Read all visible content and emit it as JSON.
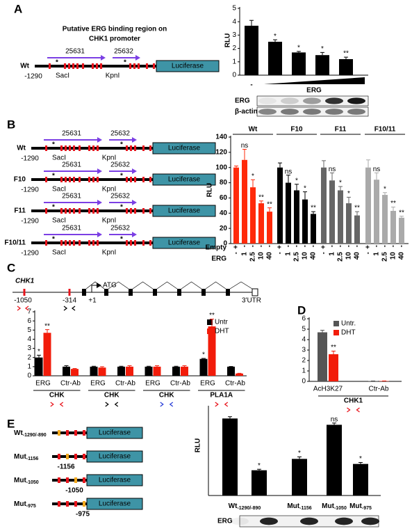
{
  "diagram_a": {
    "label": "A",
    "title": [
      "Putative ERG binding region on",
      "CHK1 promoter"
    ],
    "construct": "Wt",
    "start": "-1290",
    "sites": [
      "SacI",
      "KpnI"
    ],
    "primers": [
      "25631",
      "25632"
    ],
    "star": "*",
    "star_colors": [
      "#000000",
      "#000000"
    ],
    "reporter": "Luciferase"
  },
  "blot_a": {
    "rows": [
      "ERG",
      "β-actin"
    ]
  },
  "diagram_b": {
    "label": "B",
    "start": "-1290",
    "sites": [
      "SacI",
      "KpnI"
    ],
    "primers": [
      "25631",
      "25632"
    ],
    "star": "*",
    "reporter": "Luciferase",
    "constructs": [
      {
        "name": "Wt",
        "star_colors": [
          "#000000",
          "#000000"
        ]
      },
      {
        "name": "F10",
        "star_colors": [
          "#ff2a0a",
          "#000000"
        ]
      },
      {
        "name": "F11",
        "star_colors": [
          "#000000",
          "#ff2a0a"
        ]
      },
      {
        "name": "F10/11",
        "star_colors": [
          "#ff2a0a",
          "#ff2a0a"
        ]
      }
    ]
  },
  "diagram_c": {
    "label": "C",
    "gene": "CHK1",
    "start_codon": "ATG",
    "positions": [
      "-1050",
      "-314",
      "+1"
    ],
    "utr": "3'UTR"
  },
  "diagram_d": {
    "label": "D"
  },
  "diagram_e": {
    "label": "E",
    "reporter": "Luciferase",
    "constructs": [
      {
        "name": "Wt",
        "sub": "-1290/-890",
        "site": null
      },
      {
        "name": "Mut",
        "sub": "-1156",
        "site": "-1156"
      },
      {
        "name": "Mut",
        "sub": "-1050",
        "site": "-1050"
      },
      {
        "name": "Mut",
        "sub": "-975",
        "site": "-975"
      }
    ]
  },
  "blot_e": {
    "rows": [
      "ERG"
    ]
  },
  "chart_data": [
    {
      "type": "bar",
      "ylabel": "RLU",
      "xlabel": "ERG",
      "categories": [
        "-",
        null,
        null,
        null,
        null
      ],
      "series": [
        {
          "color": "#000000",
          "values": [
            3.7,
            2.5,
            1.7,
            1.5,
            1.2
          ],
          "errors": [
            0.4,
            0.15,
            0.08,
            0.2,
            0.15
          ],
          "annotations": [
            null,
            "*",
            "*",
            "*",
            "**"
          ]
        }
      ],
      "ylim": [
        0,
        5
      ],
      "yticks": [
        0,
        1,
        2,
        3,
        4,
        5
      ]
    },
    {
      "type": "bar",
      "ylabel": "RLU",
      "rows": [
        {
          "label": "Empty",
          "values": [
            "+",
            "-",
            "-",
            "-",
            "-"
          ]
        },
        {
          "label": "ERG",
          "values": [
            "-",
            "1",
            "2.5",
            "10",
            "40"
          ]
        }
      ],
      "series": [
        {
          "name": "Wt",
          "color": "#ff2a0a",
          "values": [
            100,
            110,
            74,
            53,
            42
          ],
          "errors": [
            2,
            14,
            10,
            3,
            5
          ],
          "annotations": [
            null,
            "ns",
            "*",
            "**",
            "**"
          ]
        },
        {
          "name": "F10",
          "color": "#000000",
          "values": [
            100,
            80,
            70,
            58,
            39
          ],
          "errors": [
            6,
            10,
            8,
            10,
            3
          ],
          "annotations": [
            null,
            "ns",
            "*",
            "*",
            "**"
          ]
        },
        {
          "name": "F11",
          "color": "#666666",
          "values": [
            100,
            83,
            70,
            53,
            37
          ],
          "errors": [
            9,
            10,
            5,
            8,
            5
          ],
          "annotations": [
            null,
            "ns",
            "*",
            "*",
            "**"
          ]
        },
        {
          "name": "F10/11",
          "color": "#aaaaaa",
          "values": [
            100,
            84,
            64,
            43,
            34
          ],
          "errors": [
            10,
            9,
            3,
            5,
            2
          ],
          "annotations": [
            null,
            "ns",
            "*",
            "**",
            "**"
          ]
        }
      ],
      "ylim": [
        0,
        140
      ],
      "yticks": [
        0,
        20,
        40,
        60,
        80,
        100,
        120,
        140
      ]
    },
    {
      "type": "bar",
      "categories": [
        "ERG",
        "Ctr-Ab",
        "ERG",
        "Ctr-Ab",
        "ERG",
        "Ctr-Ab",
        "ERG",
        "Ctr-Ab"
      ],
      "groups": [
        "CHK",
        "CHK",
        "CHK",
        "PLA1A"
      ],
      "legend": "top-right",
      "series": [
        {
          "name": "Untr",
          "color": "#000000",
          "values": [
            2.0,
            1.0,
            1.0,
            1.0,
            1.0,
            1.0,
            1.85,
            1.0
          ],
          "errors": [
            0.25,
            0.1,
            0.05,
            0.05,
            0.05,
            0.05,
            0.05,
            0.02
          ],
          "annotations": [
            "*",
            null,
            null,
            null,
            null,
            null,
            "*",
            null
          ]
        },
        {
          "name": "DHT",
          "color": "#f21c0a",
          "values": [
            4.7,
            0.75,
            0.9,
            1.0,
            1.0,
            1.0,
            5.4,
            0.25
          ],
          "errors": [
            0.35,
            0.05,
            0.1,
            0.1,
            0.1,
            0.1,
            0.8,
            0.03
          ],
          "annotations": [
            "**",
            null,
            null,
            null,
            null,
            null,
            "**",
            null
          ]
        }
      ],
      "ylim": [
        0,
        7
      ],
      "yticks": [
        0,
        1,
        2,
        3,
        4,
        5,
        6,
        7
      ]
    },
    {
      "type": "bar",
      "categories": [
        "AcH3K27",
        "Ctr-Ab"
      ],
      "groups": [
        "CHK1"
      ],
      "legend": "top-left",
      "series": [
        {
          "name": "Untr.",
          "color": "#555555",
          "values": [
            4.7,
            0.03
          ],
          "errors": [
            0.2,
            0.01
          ]
        },
        {
          "name": "DHT",
          "color": "#f21c0a",
          "values": [
            2.6,
            0.03
          ],
          "errors": [
            0.3,
            0.01
          ],
          "annotations": [
            "**",
            null
          ]
        }
      ],
      "ylim": [
        0,
        6
      ],
      "yticks": [
        0,
        1,
        2,
        3,
        4,
        5,
        6
      ]
    },
    {
      "type": "bar",
      "ylabel": "RLU",
      "categories": [
        {
          "text": "Wt",
          "sub": "-1290/-890"
        },
        null,
        {
          "text": "Mut",
          "sub": "-1156"
        },
        {
          "text": "Mut",
          "sub": "-1050"
        },
        {
          "text": "Mut",
          "sub": "-975"
        }
      ],
      "series": [
        {
          "color": "#000000",
          "values": [
            3.05,
            1.0,
            1.45,
            2.8,
            1.25
          ],
          "errors": [
            0.07,
            0.04,
            0.08,
            0.07,
            0.06
          ],
          "annotations": [
            null,
            "*",
            "*",
            "ns",
            "*"
          ]
        }
      ],
      "ylim": [
        0,
        3.5
      ]
    }
  ]
}
